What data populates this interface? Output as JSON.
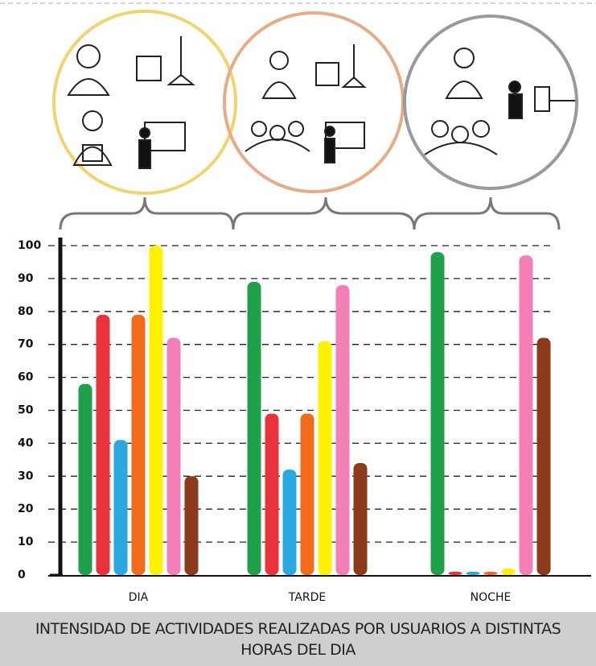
{
  "chart_data": {
    "type": "bar",
    "title": "INTENSIDAD DE ACTIVIDADES REALIZADAS POR USUARIOS A DISTINTAS HORAS DEL DIA",
    "categories": [
      "DIA",
      "TARDE",
      "NOCHE"
    ],
    "series": [
      {
        "color": "#1fa04a",
        "values": [
          58,
          89,
          98
        ]
      },
      {
        "color": "#e8323c",
        "values": [
          79,
          49,
          1
        ]
      },
      {
        "color": "#29a9e0",
        "values": [
          41,
          32,
          1
        ]
      },
      {
        "color": "#f26b1d",
        "values": [
          79,
          49,
          1
        ]
      },
      {
        "color": "#fff200",
        "values": [
          100,
          71,
          2
        ]
      },
      {
        "color": "#f37fb6",
        "values": [
          72,
          88,
          97
        ]
      },
      {
        "color": "#8b3a1a",
        "values": [
          30,
          34,
          72
        ]
      }
    ],
    "ylim": [
      0,
      100
    ],
    "yticks": [
      0,
      10,
      20,
      30,
      40,
      50,
      60,
      70,
      80,
      90,
      100
    ],
    "grid": true
  }
}
